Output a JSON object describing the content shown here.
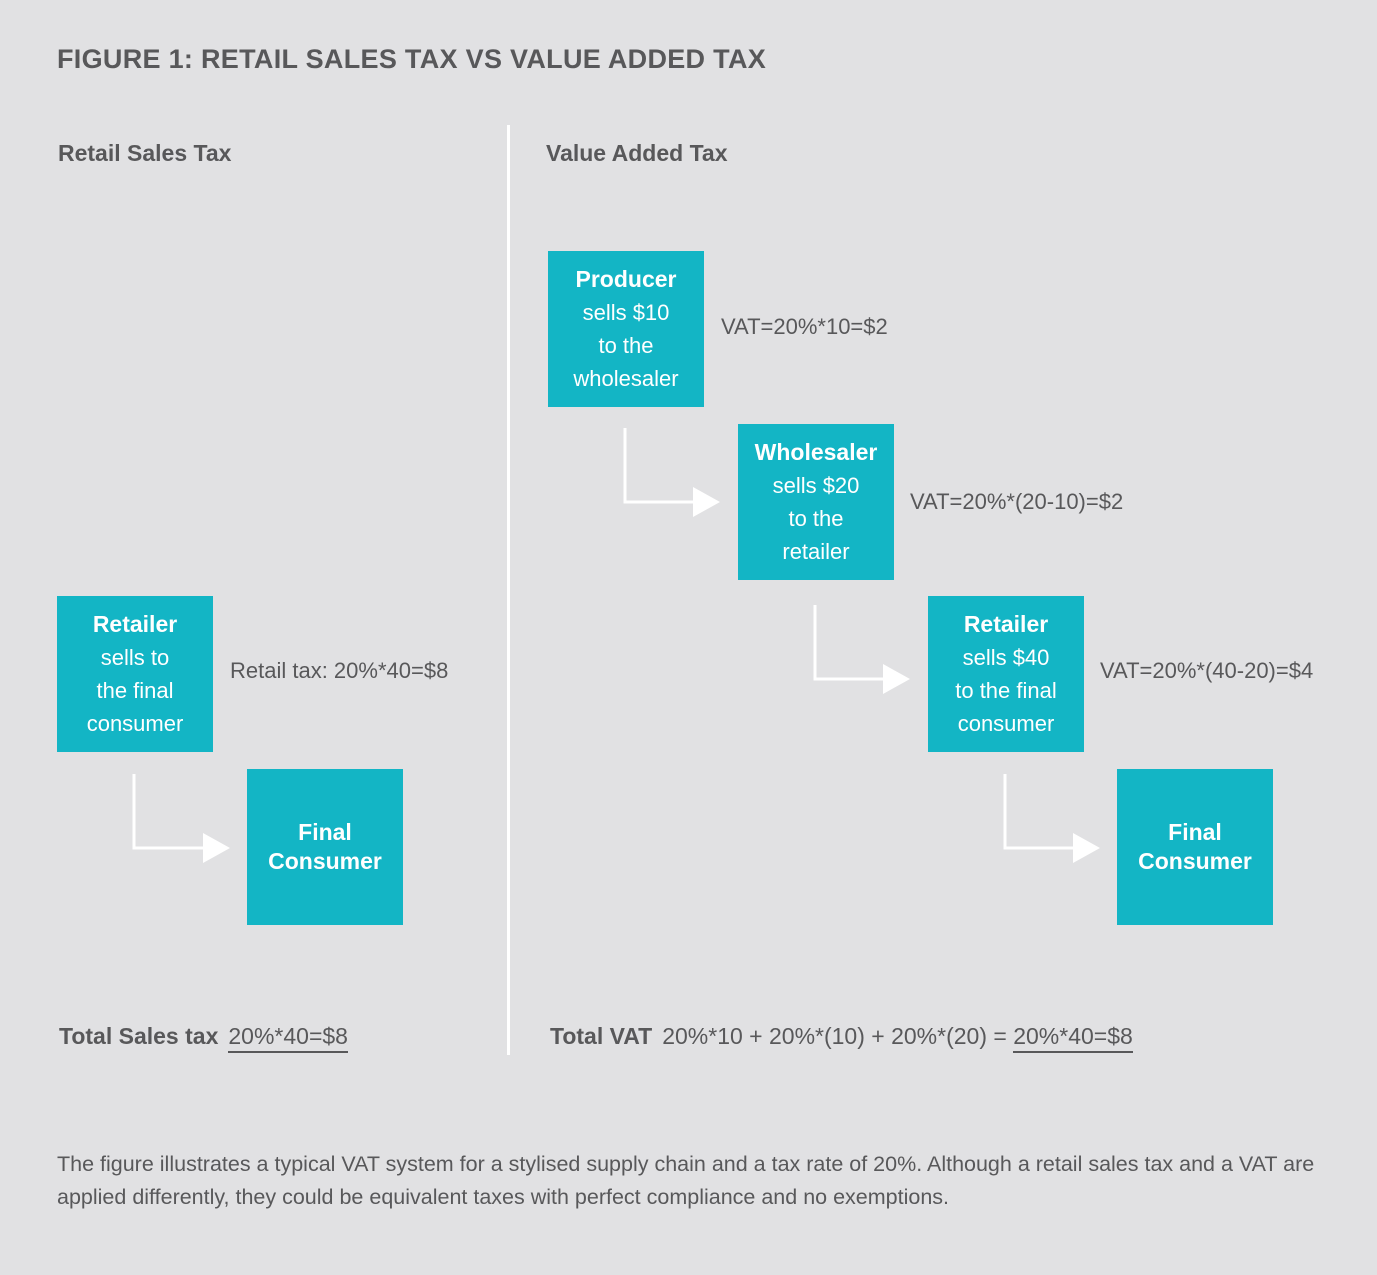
{
  "title": "FIGURE 1: RETAIL SALES TAX VS VALUE ADDED TAX",
  "left": {
    "heading": "Retail Sales Tax",
    "retailer": {
      "name": "Retailer",
      "desc": [
        "sells to",
        "the final",
        "consumer"
      ]
    },
    "retail_tax": "Retail tax: 20%*40=$8",
    "final": {
      "name": [
        "Final",
        "Consumer"
      ]
    },
    "total_label": "Total Sales tax",
    "total_value": "20%*40=$8"
  },
  "right": {
    "heading": "Value Added Tax",
    "producer": {
      "name": "Producer",
      "desc": [
        "sells $10",
        "to the",
        "wholesaler"
      ]
    },
    "producer_vat": "VAT=20%*10=$2",
    "wholesaler": {
      "name": "Wholesaler",
      "desc": [
        "sells $20",
        "to the",
        "retailer"
      ]
    },
    "wholesaler_vat": "VAT=20%*(20-10)=$2",
    "retailer": {
      "name": "Retailer",
      "desc": [
        "sells $40",
        "to the final",
        "consumer"
      ]
    },
    "retailer_vat": "VAT=20%*(40-20)=$4",
    "final": {
      "name": [
        "Final",
        "Consumer"
      ]
    },
    "total_label": "Total VAT",
    "total_expr": "20%*10 + 20%*(10) + 20%*(20) =",
    "total_value": "20%*40=$8"
  },
  "caption": "The figure illustrates a typical VAT system for a stylised supply chain and a tax rate of 20%. Although a retail sales tax and a VAT are applied differently, they could be equivalent taxes with perfect compliance and no exemptions.",
  "colors": {
    "box": "#13b5c5",
    "background": "#e1e1e3",
    "text": "#58585a",
    "arrow": "#ffffff"
  }
}
